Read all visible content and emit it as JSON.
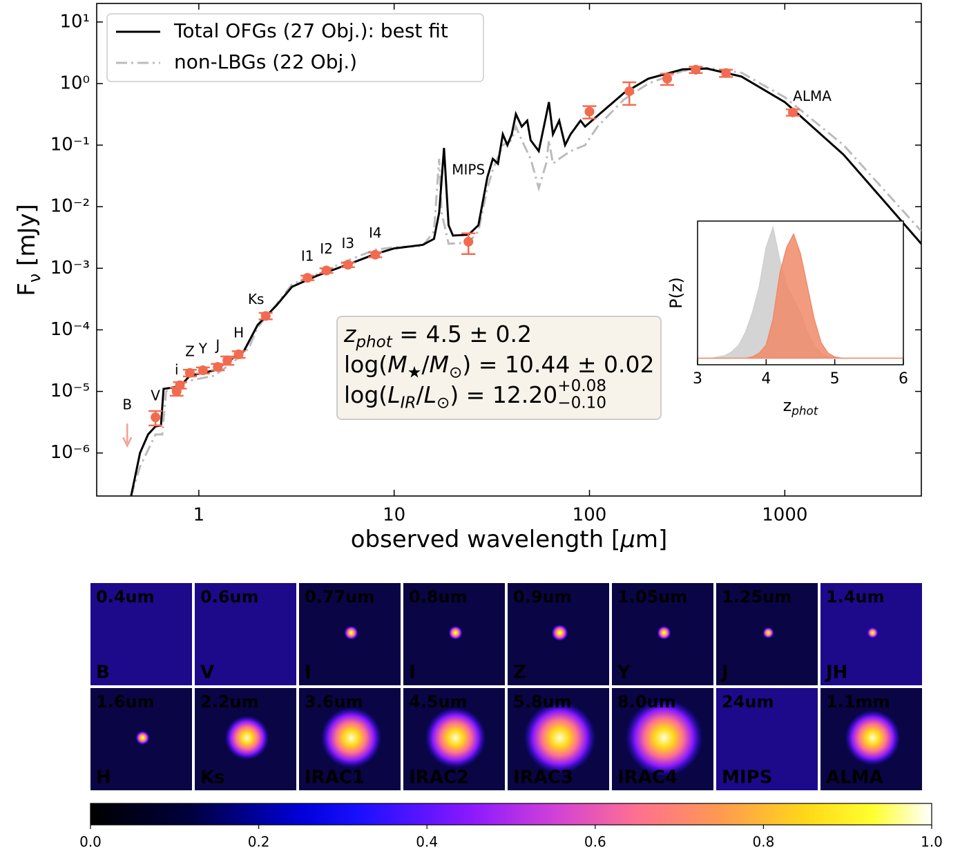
{
  "chart_data": [
    {
      "type": "line",
      "xlabel": [
        {
          "text": "observed wavelength ["
        },
        {
          "text": "μ",
          "style": "it"
        },
        {
          "text": "m]"
        }
      ],
      "ylabel": [
        {
          "text": "F"
        },
        {
          "text": "ν",
          "style": "sub"
        },
        {
          "text": " [mJy]"
        }
      ],
      "xlog": true,
      "ylog": true,
      "xlim": [
        0.3,
        5000
      ],
      "ylim": [
        2e-07,
        20
      ],
      "xticks": [
        1,
        10,
        100,
        1000
      ],
      "yticks": [
        {
          "value": 10,
          "label": "10¹"
        },
        {
          "value": 1,
          "label": "10⁰"
        },
        {
          "value": 0.1,
          "label": "10⁻¹"
        },
        {
          "value": 0.01,
          "label": "10⁻²"
        },
        {
          "value": 0.001,
          "label": "10⁻³"
        },
        {
          "value": 0.0001,
          "label": "10⁻⁴"
        },
        {
          "value": 1e-05,
          "label": "10⁻⁵"
        },
        {
          "value": 1e-06,
          "label": "10⁻⁶"
        }
      ],
      "legend": "upper left",
      "series": [
        {
          "name": "Total OFGs (27 Obj.): best fit",
          "color": "#000000",
          "dash": "solid",
          "x": [
            0.45,
            0.5,
            0.55,
            0.6,
            0.64,
            0.66,
            0.8,
            0.9,
            1.2,
            1.5,
            1.7,
            2.0,
            2.5,
            3.0,
            4,
            6,
            8,
            10,
            14,
            16,
            17,
            18,
            19,
            20,
            24,
            27,
            30,
            32,
            34,
            36,
            38,
            40,
            42,
            45,
            48,
            50,
            55,
            60,
            62,
            65,
            70,
            75,
            80,
            90,
            95,
            110,
            150,
            200,
            300,
            400,
            600,
            1000,
            2000,
            5000
          ],
          "values": [
            2e-07,
            1e-06,
            2e-06,
            2.7e-06,
            2.8e-06,
            1.1e-05,
            1.2e-05,
            1.8e-05,
            2.2e-05,
            3.5e-05,
            4.5e-05,
            0.00012,
            0.00025,
            0.0005,
            0.00075,
            0.0012,
            0.0017,
            0.0021,
            0.0024,
            0.003,
            0.008,
            0.09,
            0.005,
            0.0034,
            0.0035,
            0.005,
            0.03,
            0.06,
            0.05,
            0.15,
            0.1,
            0.15,
            0.32,
            0.2,
            0.25,
            0.12,
            0.08,
            0.3,
            0.5,
            0.15,
            0.25,
            0.1,
            0.15,
            0.25,
            0.2,
            0.3,
            0.7,
            1.2,
            1.7,
            1.75,
            1.3,
            0.5,
            0.07,
            0.0025
          ]
        },
        {
          "name": "non-LBGs (22 Obj.)",
          "color": "#bbbbbb",
          "dash": "dashdot",
          "x": [
            0.45,
            0.5,
            0.6,
            0.65,
            0.68,
            0.9,
            1.2,
            1.5,
            1.8,
            2.0,
            2.5,
            3,
            4,
            6,
            8,
            10,
            14,
            16,
            17,
            17.5,
            19,
            24,
            27,
            30,
            32,
            36,
            40,
            42,
            45,
            50,
            55,
            60,
            62,
            65,
            70,
            80,
            95,
            110,
            150,
            200,
            300,
            400,
            600,
            1000,
            2000,
            5000
          ],
          "values": [
            2e-07,
            6e-07,
            2e-06,
            2e-06,
            1e-05,
            1.5e-05,
            1.8e-05,
            3e-05,
            5e-05,
            0.00011,
            0.00026,
            0.00055,
            0.0008,
            0.0014,
            0.002,
            0.0022,
            0.0023,
            0.004,
            0.06,
            0.008,
            0.0025,
            0.0026,
            0.004,
            0.02,
            0.04,
            0.1,
            0.12,
            0.2,
            0.12,
            0.06,
            0.02,
            0.05,
            0.12,
            0.05,
            0.06,
            0.08,
            0.1,
            0.2,
            0.55,
            1.0,
            1.6,
            1.8,
            1.5,
            0.6,
            0.1,
            0.004
          ]
        }
      ],
      "points": {
        "color": "#f26b50",
        "x": [
          0.6,
          0.77,
          0.8,
          0.9,
          1.05,
          1.25,
          1.4,
          1.6,
          2.2,
          3.6,
          4.5,
          5.8,
          8.0,
          24,
          100,
          160,
          250,
          350,
          500,
          1100
        ],
        "values": [
          3.8e-06,
          1e-05,
          1.26e-05,
          2e-05,
          2.2e-05,
          2.5e-05,
          3.2e-05,
          4e-05,
          0.000168,
          0.0007,
          0.00092,
          0.00114,
          0.00166,
          0.0027,
          0.35,
          0.75,
          1.2,
          1.68,
          1.48,
          0.34
        ],
        "errors": [
          1e-06,
          1.5e-06,
          1.5e-06,
          2.5e-06,
          2.5e-06,
          3e-06,
          5e-06,
          5e-06,
          2e-05,
          6e-05,
          8e-05,
          0.0001,
          0.00015,
          0.001,
          0.08,
          0.3,
          0.25,
          0.2,
          0.2,
          0.04
        ],
        "labels": [
          "V",
          "i",
          null,
          "Z",
          "Y",
          "J",
          null,
          "H",
          "Ks",
          "I1",
          "I2",
          "I3",
          "I4",
          "MIPS",
          null,
          null,
          null,
          null,
          null,
          "ALMA"
        ]
      },
      "upper_limits": {
        "color": "#f4a090",
        "x": [
          0.43
        ],
        "values": [
          3e-06
        ],
        "labels": [
          "B"
        ]
      },
      "annotation": [
        [
          {
            "text": "z",
            "style": "it"
          },
          {
            "text": "phot",
            "style": "sub-it"
          },
          {
            "text": " = 4.5 ± 0.2"
          }
        ],
        [
          {
            "text": "log("
          },
          {
            "text": "M",
            "style": "it"
          },
          {
            "text": "★",
            "style": "sub"
          },
          {
            "text": "/"
          },
          {
            "text": "M",
            "style": "it"
          },
          {
            "text": "⊙",
            "style": "sub"
          },
          {
            "text": ") = 10.44 ± 0.02"
          }
        ],
        [
          {
            "text": "log("
          },
          {
            "text": "L",
            "style": "it"
          },
          {
            "text": "IR",
            "style": "sub-it"
          },
          {
            "text": "/"
          },
          {
            "text": "L",
            "style": "it"
          },
          {
            "text": "⊙",
            "style": "sub"
          },
          {
            "text": ") = 12.20"
          },
          {
            "text": "+0.08",
            "style": "sup"
          },
          {
            "text": "−0.10",
            "style": "substack"
          }
        ]
      ]
    },
    {
      "type": "area",
      "xlabel": [
        {
          "text": "z"
        },
        {
          "text": "phot",
          "style": "sub-it"
        }
      ],
      "ylabel": [
        {
          "text": "P(z)"
        }
      ],
      "xlim": [
        3,
        6
      ],
      "ylim": [
        -0.05,
        1.05
      ],
      "xticks": [
        3,
        4,
        5,
        6
      ],
      "x": [
        3.0,
        3.1,
        3.2,
        3.3,
        3.4,
        3.5,
        3.6,
        3.7,
        3.8,
        3.9,
        4.0,
        4.1,
        4.2,
        4.3,
        4.4,
        4.5,
        4.6,
        4.7,
        4.8,
        4.9,
        5.0,
        5.1,
        5.2,
        5.3,
        5.4,
        5.5,
        5.6,
        5.7,
        5.8,
        5.9,
        6.0
      ],
      "series": [
        {
          "color": "#cfcfcf",
          "values": [
            0,
            0,
            0,
            0.01,
            0.02,
            0.05,
            0.1,
            0.2,
            0.35,
            0.55,
            0.85,
            1.0,
            0.75,
            0.55,
            0.45,
            0.35,
            0.2,
            0.1,
            0.04,
            0.01,
            0,
            0,
            0,
            0,
            0,
            0,
            0,
            0,
            0,
            0,
            0
          ]
        },
        {
          "color": "#f08a68",
          "values": [
            0,
            0,
            0,
            0,
            0,
            0,
            0,
            0,
            0.01,
            0.04,
            0.1,
            0.3,
            0.65,
            0.85,
            0.95,
            0.8,
            0.55,
            0.3,
            0.12,
            0.04,
            0.01,
            0,
            0,
            0,
            0,
            0,
            0,
            0,
            0,
            0,
            0
          ]
        }
      ]
    }
  ],
  "cutouts": {
    "panels": [
      {
        "top": "0.4um",
        "bottom": "B"
      },
      {
        "top": "0.6um",
        "bottom": "V"
      },
      {
        "top": "0.77um",
        "bottom": "I"
      },
      {
        "top": "0.8um",
        "bottom": "I"
      },
      {
        "top": "0.9um",
        "bottom": "Z"
      },
      {
        "top": "1.05um",
        "bottom": "Y"
      },
      {
        "top": "1.25um",
        "bottom": "J"
      },
      {
        "top": "1.4um",
        "bottom": "JH"
      },
      {
        "top": "1.6um",
        "bottom": "H"
      },
      {
        "top": "2.2um",
        "bottom": "Ks"
      },
      {
        "top": "3.6um",
        "bottom": "IRAC1"
      },
      {
        "top": "4.5um",
        "bottom": "IRAC2"
      },
      {
        "top": "5.8um",
        "bottom": "IRAC3"
      },
      {
        "top": "8.0um",
        "bottom": "IRAC4"
      },
      {
        "top": "24um",
        "bottom": "MIPS"
      },
      {
        "top": "1.1mm",
        "bottom": "ALMA"
      }
    ],
    "colorbar": {
      "xlim": [
        0,
        1
      ],
      "xticks": [
        {
          "value": 0,
          "label": "0.0"
        },
        0.2,
        0.4,
        0.6,
        0.8,
        {
          "value": 1,
          "label": "1.0"
        }
      ]
    }
  }
}
